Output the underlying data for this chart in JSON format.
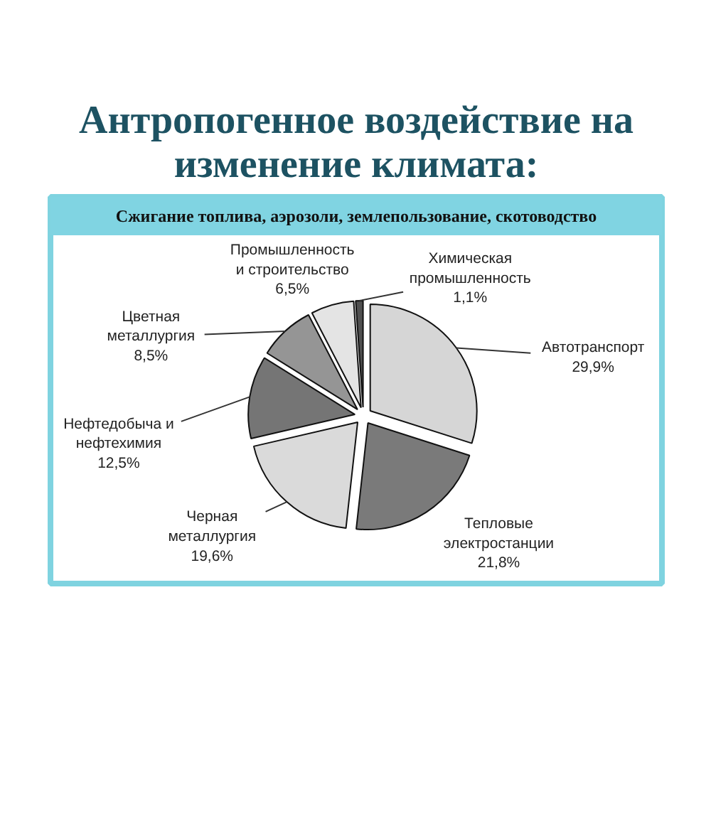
{
  "chart_data": {
    "type": "pie",
    "title": "Антропогенное воздействие на изменение климата:",
    "subtitle": "Сжигание топлива, аэрозоли, землепользование, скотоводство",
    "categories": [
      "Автотранспорт",
      "Тепловые электростанции",
      "Черная металлургия",
      "Нефтедобыча и нефтехимия",
      "Цветная металлургия",
      "Промышленность и строительство",
      "Химическая промышленность"
    ],
    "values": [
      29.9,
      21.8,
      19.6,
      12.5,
      8.5,
      6.5,
      1.1
    ],
    "colors": [
      "#d6d6d6",
      "#7a7a7a",
      "#dadada",
      "#757575",
      "#959595",
      "#e4e4e4",
      "#505050"
    ],
    "value_labels": [
      "29,9%",
      "21,8%",
      "19,6%",
      "12,5%",
      "8,5%",
      "6,5%",
      "1,1%"
    ]
  }
}
